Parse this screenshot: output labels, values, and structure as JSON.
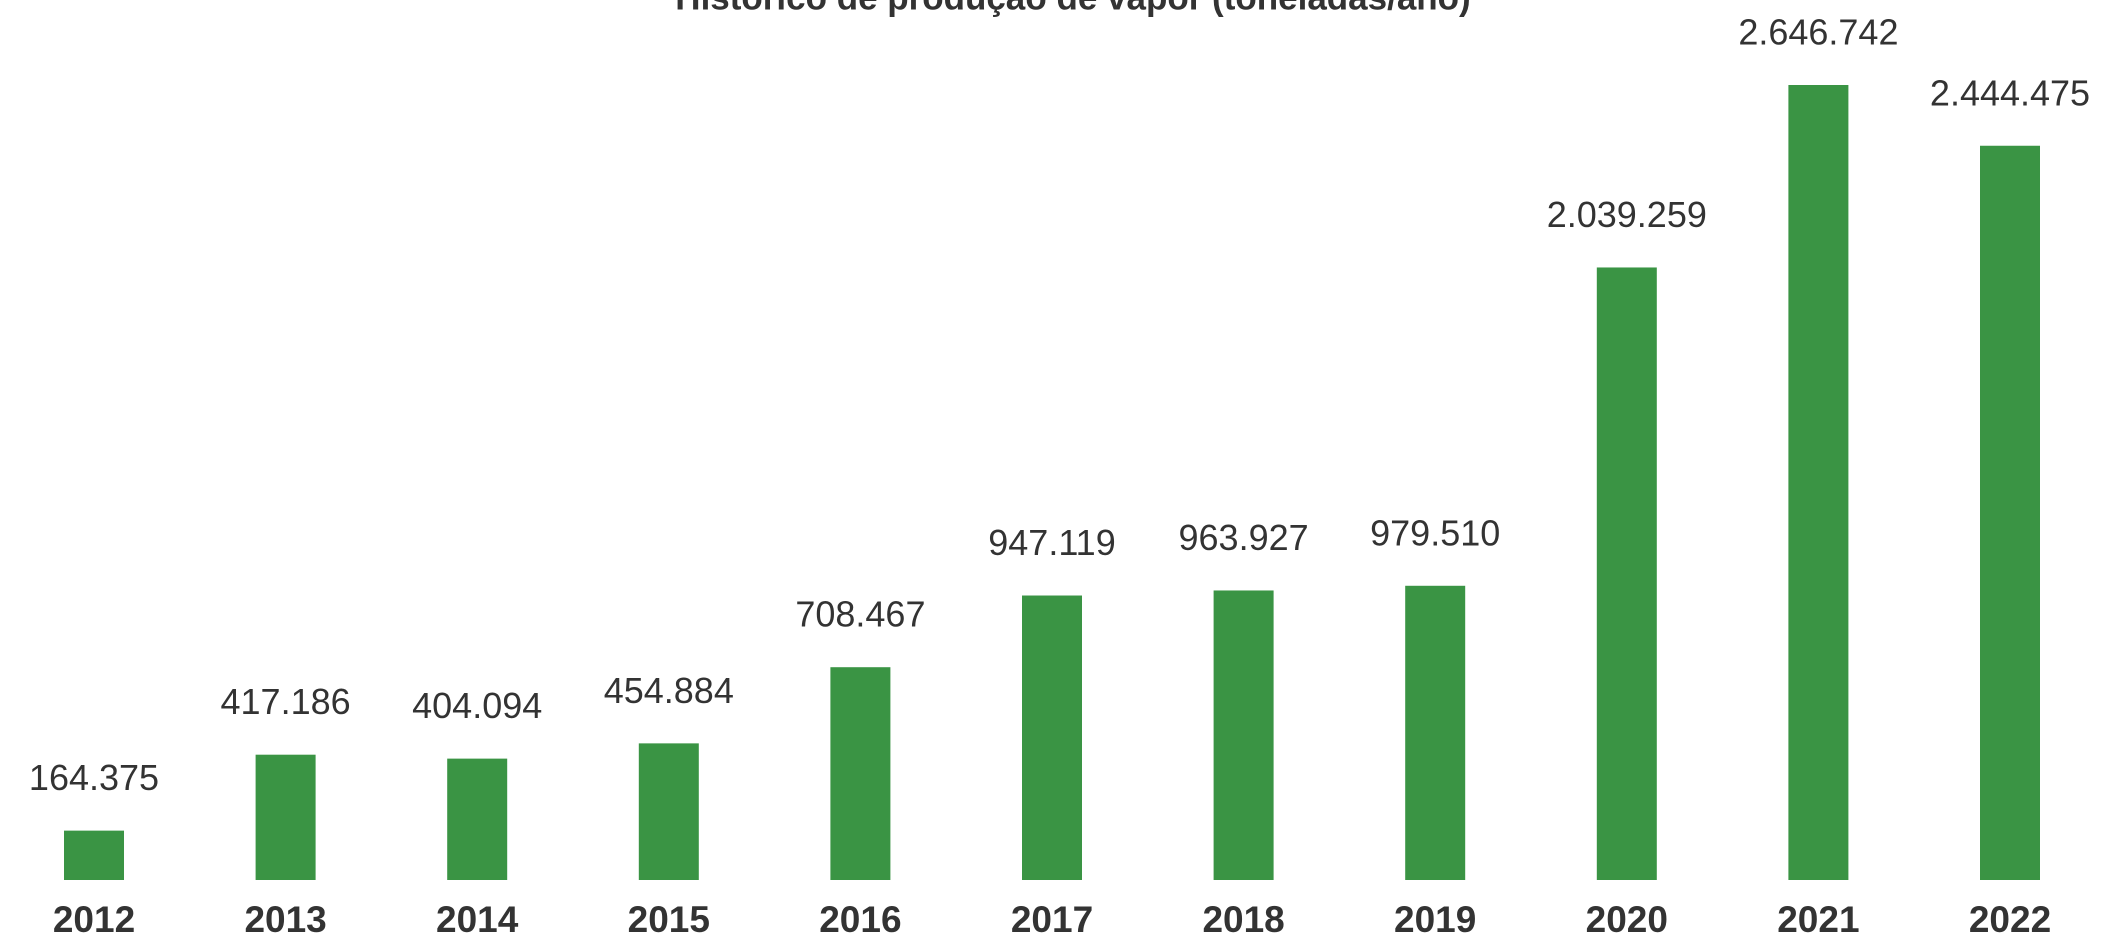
{
  "chart_data": {
    "type": "bar",
    "title": "Histórico de produção de vapor (toneladas/ano)",
    "categories": [
      "2012",
      "2013",
      "2014",
      "2015",
      "2016",
      "2017",
      "2018",
      "2019",
      "2020",
      "2021",
      "2022"
    ],
    "values": [
      164375,
      417186,
      404094,
      454884,
      708467,
      947119,
      963927,
      979510,
      2039259,
      2646742,
      2444475
    ],
    "value_labels": [
      "164.375",
      "417.186",
      "404.094",
      "454.884",
      "708.467",
      "947.119",
      "963.927",
      "979.510",
      "2.039.259",
      "2.646.742",
      "2.444.475"
    ],
    "color": "#3a9444"
  }
}
